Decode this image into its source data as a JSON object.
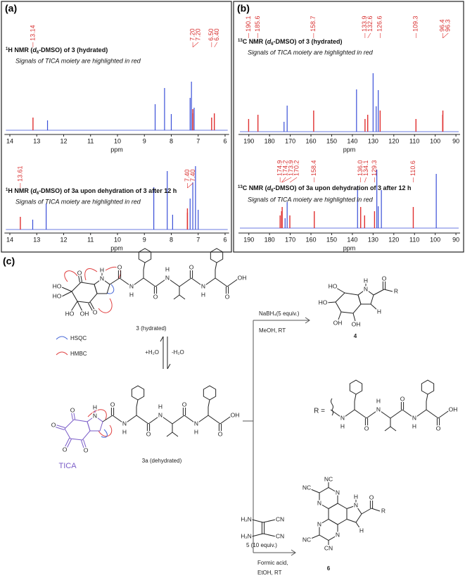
{
  "panel_a": {
    "label": "(a)",
    "spectra": [
      {
        "title": {
          "sup": "1",
          "nucleus": "H NMR (",
          "solvent": "d",
          "solvent_sub": "6",
          "rest": "-DMSO) of 3 (hydrated)"
        },
        "note": "Signals of TICA moiety are highlighted in red",
        "xlim": [
          14.2,
          5.85
        ],
        "xticks": [
          14,
          13,
          12,
          11,
          10,
          9,
          8,
          7,
          6
        ],
        "xlabel": "ppm",
        "peak_labels": [
          13.14,
          {
            "value": 7.2,
            "label": "7.20"
          },
          {
            "value": 7.2,
            "label": "7.20"
          },
          {
            "value": 6.5,
            "label": "6.50"
          },
          {
            "value": 6.4,
            "label": "6.40"
          }
        ],
        "other_peaks": [
          12.6,
          8.6,
          8.25,
          8.0,
          7.3,
          7.25,
          7.15
        ]
      },
      {
        "title": {
          "sup": "1",
          "nucleus": "H NMR (",
          "solvent": "d",
          "solvent_sub": "6",
          "rest": "-DMSO) of 3a upon dehydration of 3 after 12 h"
        },
        "note": "Signals of TICA moiety are highlighted in red",
        "xlim": [
          14.2,
          5.85
        ],
        "xticks": [
          14,
          13,
          12,
          11,
          10,
          9,
          8,
          7,
          6
        ],
        "xlabel": "ppm",
        "peak_labels": [
          13.61,
          {
            "value": 7.4,
            "label": "7.40"
          },
          {
            "value": 7.4,
            "label": "7.40"
          }
        ],
        "other_peaks": [
          13.15,
          12.65,
          8.65,
          8.15,
          7.95,
          7.3,
          7.2,
          7.1,
          7.0
        ]
      }
    ]
  },
  "panel_b": {
    "label": "(b)",
    "spectra": [
      {
        "title": {
          "sup": "13",
          "nucleus": "C NMR (",
          "solvent": "d",
          "solvent_sub": "6",
          "rest": "-DMSO) of 3 (hydrated)"
        },
        "note": "Signals of TICA moiety are highlighted in red",
        "xlim": [
          195,
          88
        ],
        "xticks": [
          190,
          180,
          170,
          160,
          150,
          140,
          130,
          120,
          110,
          100,
          90
        ],
        "xlabel": "ppm",
        "peak_labels": [
          190.1,
          185.6,
          158.7,
          133.9,
          132.6,
          126.6,
          109.3,
          96.4,
          96.3
        ],
        "other_peaks": [
          173,
          171.5,
          138,
          130,
          128.5,
          127.5
        ]
      },
      {
        "title": {
          "sup": "13",
          "nucleus": "C NMR (",
          "solvent": "d",
          "solvent_sub": "6",
          "rest": "-DMSO) of 3a upon dehydration of 3 after 12 h"
        },
        "note": "Signals of TICA moiety are highlighted in red",
        "xlim": [
          195,
          88
        ],
        "xticks": [
          190,
          180,
          170,
          160,
          150,
          140,
          130,
          120,
          110,
          100,
          90
        ],
        "xlabel": "ppm",
        "peak_labels": [
          174.9,
          174.2,
          173.9,
          170.2,
          158.4,
          {
            "value": 136,
            "label": "136.0"
          },
          134.1,
          129.3,
          110.6
        ],
        "other_peaks": [
          172.5,
          171.5,
          137.5,
          128.2,
          127.5,
          126,
          99.5
        ]
      }
    ]
  },
  "panel_c": {
    "label": "(c)",
    "compound_3": {
      "label": "3 (hydrated)",
      "head_atoms": [
        "N",
        "H",
        "O",
        "HO",
        "HO",
        "HO",
        "OH",
        "O"
      ],
      "chain_atoms": [
        "O",
        "N",
        "H",
        "O",
        "N",
        "H",
        "O",
        "N",
        "H",
        "O",
        "OH"
      ]
    },
    "compound_3a": {
      "label": "3a (dehydrated)",
      "head_atoms": [
        "N",
        "H",
        "O",
        "O",
        "O",
        "O"
      ],
      "chain_atoms": [
        "O",
        "N",
        "H",
        "O",
        "N",
        "H",
        "O",
        "N",
        "H",
        "O",
        "OH"
      ],
      "moiety": "TICA"
    },
    "legend": {
      "hsqc": "HSQC",
      "hmbc": "HMBC"
    },
    "equilibrium": {
      "forward": "+H₂O",
      "reverse": "-H₂O"
    },
    "reaction_1": {
      "reagent": "NaBH₄(5 equiv.)",
      "conditions": "MeOH, RT"
    },
    "compound_4": {
      "label": "4",
      "atoms": [
        "N",
        "H",
        "HO",
        "HO",
        "OH",
        "OH",
        "H",
        "O",
        "R"
      ]
    },
    "r_group": {
      "label": "R =",
      "chain_atoms": [
        "N",
        "H",
        "O",
        "N",
        "H",
        "O",
        "N",
        "H",
        "O",
        "OH"
      ]
    },
    "compound_5": {
      "label": "5 (10 equiv.)",
      "atoms": [
        "H₂N",
        "CN",
        "H₂N",
        "CN"
      ]
    },
    "reaction_2": {
      "conditions_1": "Formic acid,",
      "conditions_2": "EtOH, RT"
    },
    "compound_6": {
      "label": "6",
      "atoms": [
        "N",
        "N",
        "NC",
        "NC",
        "N",
        "N",
        "NC",
        "CN",
        "N",
        "H",
        "O",
        "R",
        "H"
      ]
    }
  }
}
